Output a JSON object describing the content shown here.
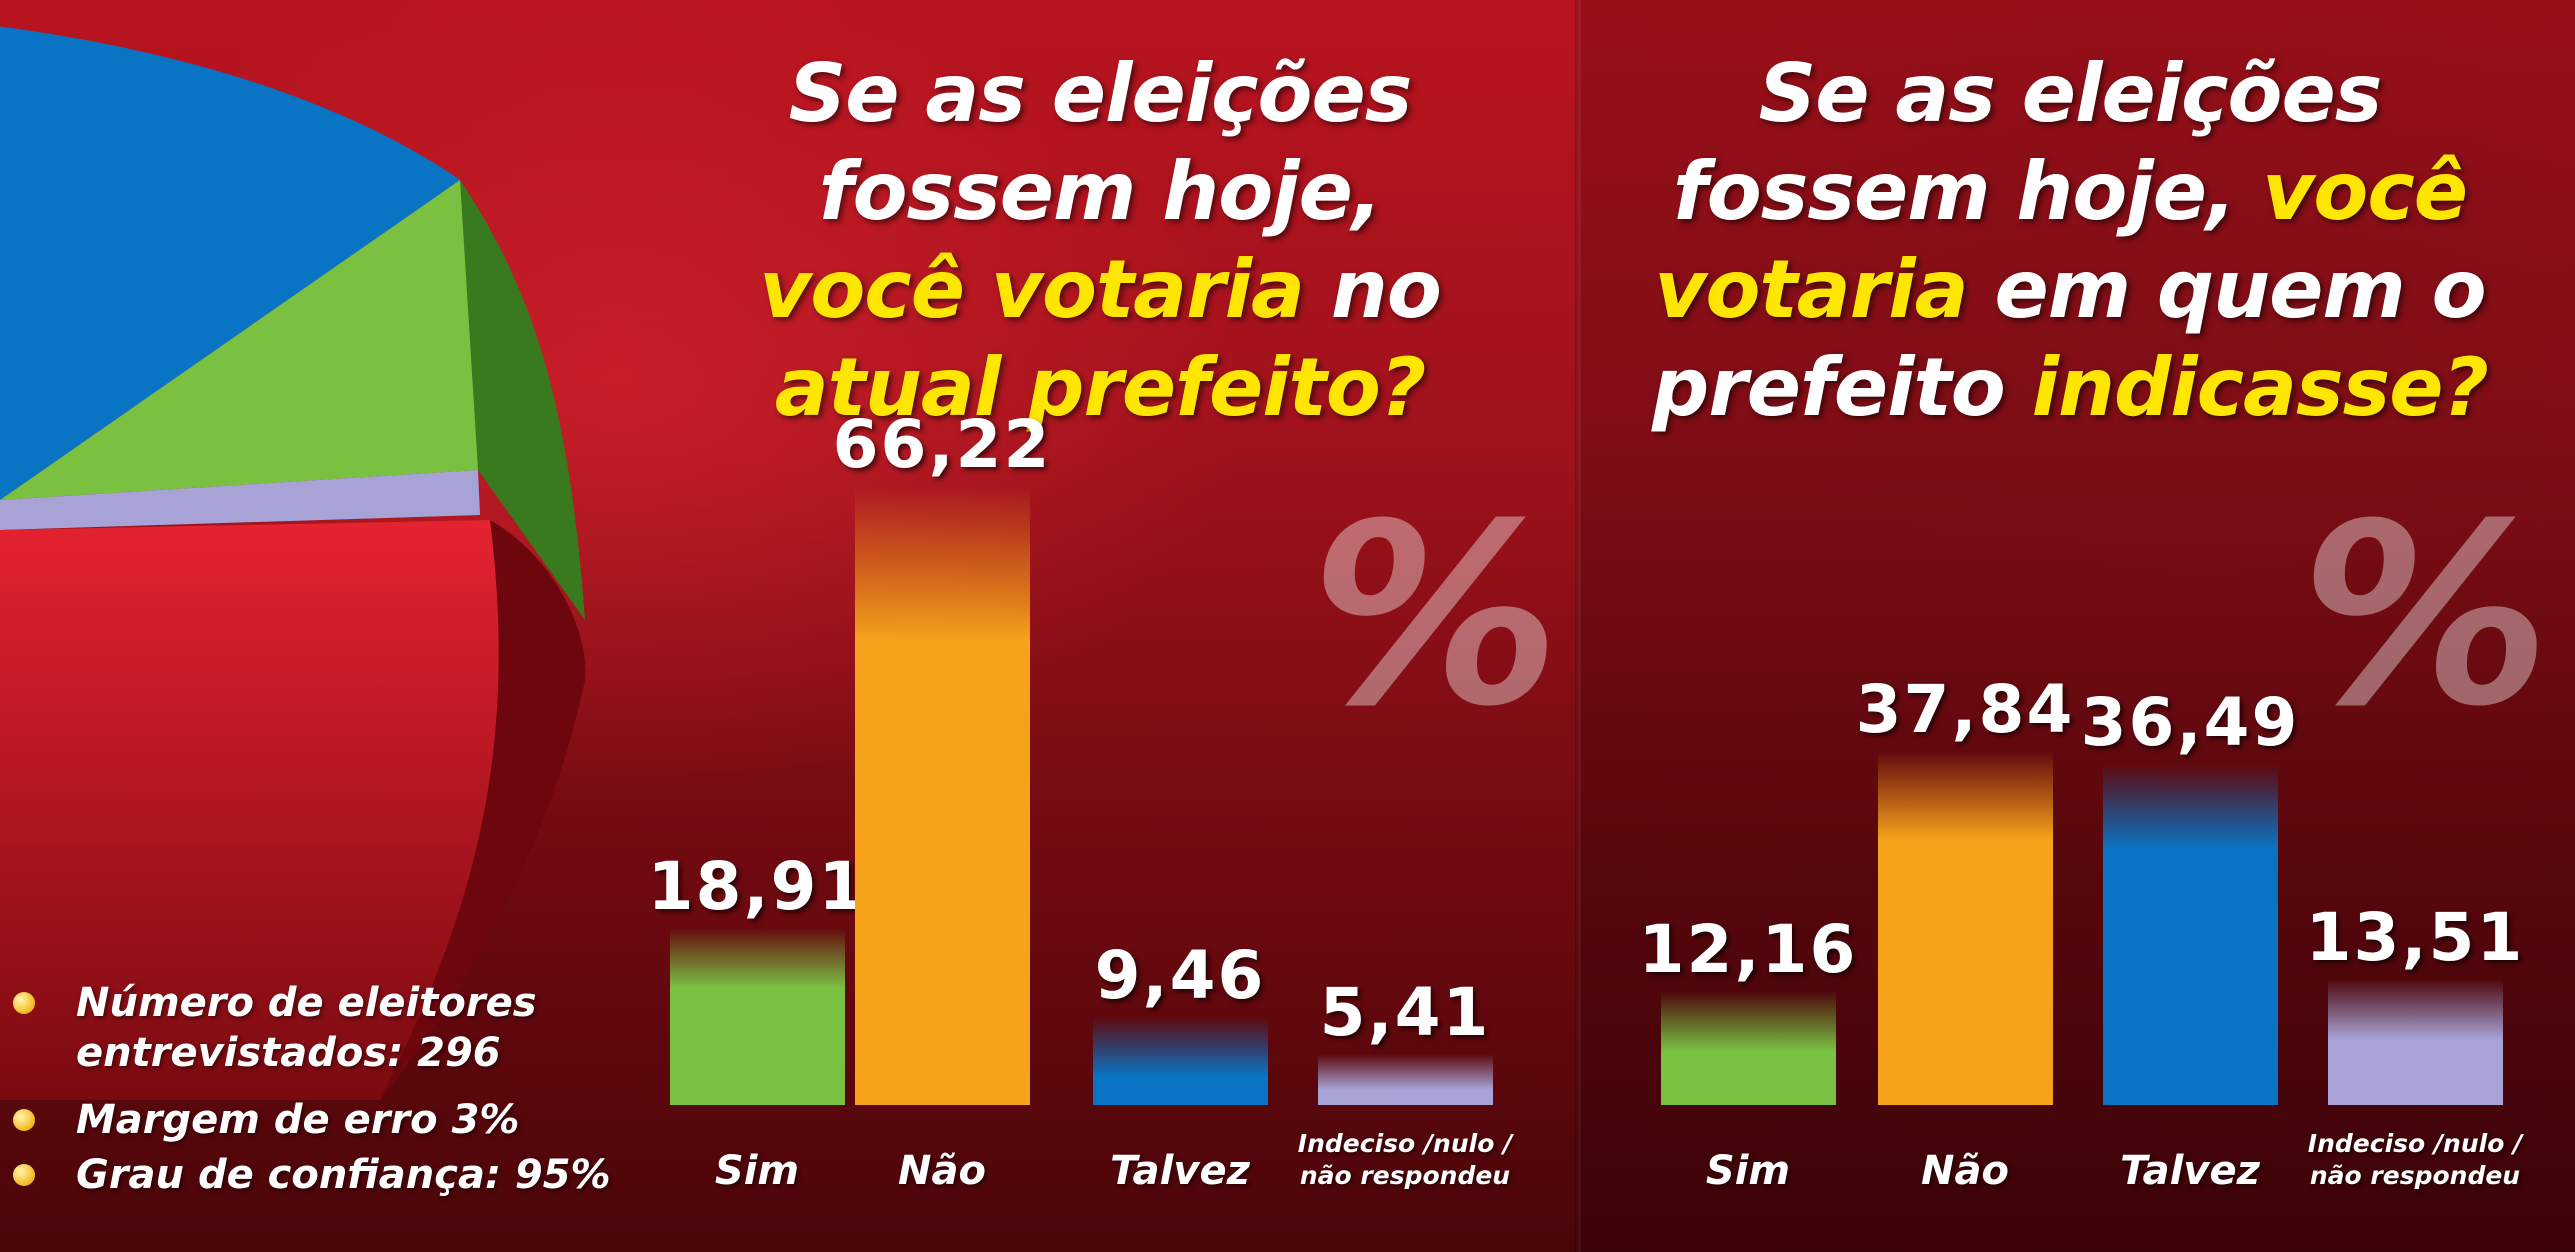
{
  "left_chart_title": {
    "line1": "Se as eleições",
    "line2": "fossem hoje,",
    "line3_hl": "você votaria",
    "line3_rest": " no",
    "line4_hl": "atual prefeito?"
  },
  "right_chart_title": {
    "line1": "Se as eleições",
    "line2_a": "fossem hoje, ",
    "line2_hl": "você",
    "line3_hl": "votaria",
    "line3_rest": " em quem o",
    "line4_a": "prefeito ",
    "line4_hl": "indicasse?"
  },
  "percent_symbol": "%",
  "notes": [
    "Número de eleitores entrevistados: 296",
    "Margem de erro 3%",
    "Grau de confiança: 95%"
  ],
  "colors": {
    "sim": "#7ac142",
    "nao": "#f7a21b",
    "talvez": "#0a74c4",
    "indeciso": "#a7a3d6",
    "highlight": "#ffe600",
    "pie_blue": "#0a74c4",
    "pie_green": "#7ac142",
    "pie_lavender": "#a7a3d6",
    "pie_red": "#e31d2b"
  },
  "chart_data": [
    {
      "type": "bar",
      "categories": [
        "Sim",
        "Não",
        "Talvez",
        "Indeciso /nulo / não respondeu"
      ],
      "values": [
        18.91,
        66.22,
        9.46,
        5.41
      ],
      "value_labels": [
        "18,91",
        "66,22",
        "9,46",
        "5,41"
      ],
      "title": "Se as eleições fossem hoje, você votaria no atual prefeito?",
      "ylabel": "%"
    },
    {
      "type": "bar",
      "categories": [
        "Sim",
        "Não",
        "Talvez",
        "Indeciso /nulo / não respondeu"
      ],
      "values": [
        12.16,
        37.84,
        36.49,
        13.51
      ],
      "value_labels": [
        "12,16",
        "37,84",
        "36,49",
        "13,51"
      ],
      "title": "Se as eleições fossem hoje, você votaria em quem o prefeito indicasse?",
      "ylabel": "%"
    }
  ],
  "category_display": [
    {
      "line1": "Sim",
      "line2": ""
    },
    {
      "line1": "Não",
      "line2": ""
    },
    {
      "line1": "Talvez",
      "line2": ""
    },
    {
      "line1": "Indeciso /nulo /",
      "line2": "não respondeu"
    }
  ]
}
